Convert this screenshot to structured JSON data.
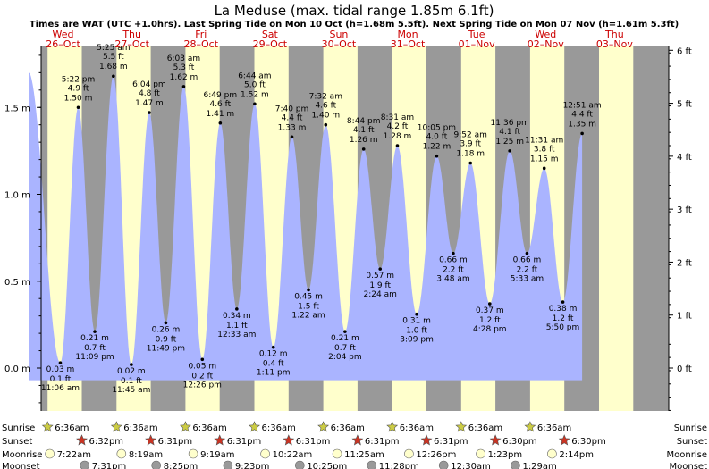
{
  "chart_data": {
    "type": "area",
    "title": "La Meduse (max. tidal range 1.85m 6.1ft)",
    "subtitle": "Times are WAT (UTC +1.0hrs). Last Spring Tide on Mon 10 Oct (h=1.68m 5.5ft). Next Spring Tide on Mon 07 Nov (h=1.61m 5.3ft)",
    "y_left": {
      "unit": "m",
      "ylim": [
        -0.3,
        1.95
      ],
      "ticks": [
        0.0,
        0.5,
        1.0,
        1.5
      ],
      "tick_labels": [
        "0.0 m",
        "0.5 m",
        "1.0 m",
        "1.5 m"
      ]
    },
    "y_right": {
      "unit": "ft",
      "ticks": [
        0,
        1,
        2,
        3,
        4,
        5,
        6
      ],
      "tick_labels": [
        "0 ft",
        "1 ft",
        "2 ft",
        "3 ft",
        "4 ft",
        "5 ft",
        "6 ft"
      ]
    },
    "days": [
      {
        "dow": "Wed",
        "date": "26–Oct"
      },
      {
        "dow": "Thu",
        "date": "27–Oct"
      },
      {
        "dow": "Fri",
        "date": "28–Oct"
      },
      {
        "dow": "Sat",
        "date": "29–Oct"
      },
      {
        "dow": "Sun",
        "date": "30–Oct"
      },
      {
        "dow": "Mon",
        "date": "31–Oct"
      },
      {
        "dow": "Tue",
        "date": "01–Nov"
      },
      {
        "dow": "Wed",
        "date": "02–Nov"
      },
      {
        "dow": "Thu",
        "date": "03–Nov"
      }
    ],
    "tides": [
      {
        "t": 0.0,
        "h": 1.7,
        "time": "",
        "ft": "",
        "m": "",
        "type": "high"
      },
      {
        "t": 0.46,
        "h": 0.03,
        "time": "11:06 am",
        "ft": "0.1 ft",
        "m": "0.03 m",
        "type": "low"
      },
      {
        "t": 0.72,
        "h": 1.5,
        "time": "5:22 pm",
        "ft": "4.9 ft",
        "m": "1.50 m",
        "type": "high"
      },
      {
        "t": 0.96,
        "h": 0.21,
        "time": "11:09 pm",
        "ft": "0.7 ft",
        "m": "0.21 m",
        "type": "low"
      },
      {
        "t": 1.23,
        "h": 1.68,
        "time": "5:25 am",
        "ft": "5.5 ft",
        "m": "1.68 m",
        "type": "high"
      },
      {
        "t": 1.49,
        "h": 0.02,
        "time": "11:45 am",
        "ft": "0.1 ft",
        "m": "0.02 m",
        "type": "low"
      },
      {
        "t": 1.75,
        "h": 1.47,
        "time": "6:04 pm",
        "ft": "4.8 ft",
        "m": "1.47 m",
        "type": "high"
      },
      {
        "t": 1.99,
        "h": 0.26,
        "time": "11:49 pm",
        "ft": "0.9 ft",
        "m": "0.26 m",
        "type": "low"
      },
      {
        "t": 2.25,
        "h": 1.62,
        "time": "6:03 am",
        "ft": "5.3 ft",
        "m": "1.62 m",
        "type": "high"
      },
      {
        "t": 2.52,
        "h": 0.05,
        "time": "12:26 pm",
        "ft": "0.2 ft",
        "m": "0.05 m",
        "type": "low"
      },
      {
        "t": 2.78,
        "h": 1.41,
        "time": "6:49 pm",
        "ft": "4.6 ft",
        "m": "1.41 m",
        "type": "high"
      },
      {
        "t": 3.02,
        "h": 0.34,
        "time": "12:33 am",
        "ft": "1.1 ft",
        "m": "0.34 m",
        "type": "low"
      },
      {
        "t": 3.28,
        "h": 1.52,
        "time": "6:44 am",
        "ft": "5.0 ft",
        "m": "1.52 m",
        "type": "high"
      },
      {
        "t": 3.55,
        "h": 0.12,
        "time": "1:11 pm",
        "ft": "0.4 ft",
        "m": "0.12 m",
        "type": "low"
      },
      {
        "t": 3.82,
        "h": 1.33,
        "time": "7:40 pm",
        "ft": "4.4 ft",
        "m": "1.33 m",
        "type": "high"
      },
      {
        "t": 4.06,
        "h": 0.45,
        "time": "1:22 am",
        "ft": "1.5 ft",
        "m": "0.45 m",
        "type": "low"
      },
      {
        "t": 4.31,
        "h": 1.4,
        "time": "7:32 am",
        "ft": "4.6 ft",
        "m": "1.40 m",
        "type": "high"
      },
      {
        "t": 4.59,
        "h": 0.21,
        "time": "2:04 pm",
        "ft": "0.7 ft",
        "m": "0.21 m",
        "type": "low"
      },
      {
        "t": 4.86,
        "h": 1.26,
        "time": "8:44 pm",
        "ft": "4.1 ft",
        "m": "1.26 m",
        "type": "high"
      },
      {
        "t": 5.1,
        "h": 0.57,
        "time": "2:24 am",
        "ft": "1.9 ft",
        "m": "0.57 m",
        "type": "low"
      },
      {
        "t": 5.35,
        "h": 1.28,
        "time": "8:31 am",
        "ft": "4.2 ft",
        "m": "1.28 m",
        "type": "high"
      },
      {
        "t": 5.63,
        "h": 0.31,
        "time": "3:09 pm",
        "ft": "1.0 ft",
        "m": "0.31 m",
        "type": "low"
      },
      {
        "t": 5.92,
        "h": 1.22,
        "time": "10:05 pm",
        "ft": "4.0 ft",
        "m": "1.22 m",
        "type": "high"
      },
      {
        "t": 6.16,
        "h": 0.66,
        "time": "3:48 am",
        "ft": "2.2 ft",
        "m": "0.66 m",
        "type": "low"
      },
      {
        "t": 6.41,
        "h": 1.18,
        "time": "9:52 am",
        "ft": "3.9 ft",
        "m": "1.18 m",
        "type": "high"
      },
      {
        "t": 6.69,
        "h": 0.37,
        "time": "4:28 pm",
        "ft": "1.2 ft",
        "m": "0.37 m",
        "type": "low"
      },
      {
        "t": 6.98,
        "h": 1.25,
        "time": "11:36 pm",
        "ft": "4.1 ft",
        "m": "1.25 m",
        "type": "high"
      },
      {
        "t": 7.23,
        "h": 0.66,
        "time": "5:33 am",
        "ft": "2.2 ft",
        "m": "0.66 m",
        "type": "low"
      },
      {
        "t": 7.48,
        "h": 1.15,
        "time": "11:31 am",
        "ft": "3.8 ft",
        "m": "1.15 m",
        "type": "high"
      },
      {
        "t": 7.75,
        "h": 0.38,
        "time": "5:50 pm",
        "ft": "1.2 ft",
        "m": "0.38 m",
        "type": "low"
      },
      {
        "t": 8.03,
        "h": 1.35,
        "time": "12:51 am",
        "ft": "4.4 ft",
        "m": "1.35 m",
        "type": "high"
      }
    ],
    "sunrise": [
      "6:36am",
      "6:36am",
      "6:36am",
      "6:36am",
      "6:36am",
      "6:36am",
      "6:36am",
      "6:36am"
    ],
    "sunset": [
      "6:32pm",
      "6:31pm",
      "6:31pm",
      "6:31pm",
      "6:31pm",
      "6:31pm",
      "6:30pm",
      "6:30pm"
    ],
    "moonrise": [
      "7:22am",
      "8:19am",
      "9:19am",
      "10:22am",
      "11:25am",
      "12:26pm",
      "1:23pm",
      "2:14pm"
    ],
    "moonset": [
      "7:31pm",
      "8:25pm",
      "9:23pm",
      "10:25pm",
      "11:28pm",
      "12:30am",
      "1:29am"
    ],
    "row_labels": [
      "Sunrise",
      "Sunset",
      "Moonrise",
      "Moonset"
    ],
    "colors": {
      "night": "#999999",
      "day": "#ffffcc",
      "water": "#aab4ff",
      "day_label": "#cc0000",
      "sunrise_star": "#cccc44",
      "sunset_star": "#cc3322",
      "moonrise": "#ffffcc",
      "moonset": "#999999"
    }
  }
}
